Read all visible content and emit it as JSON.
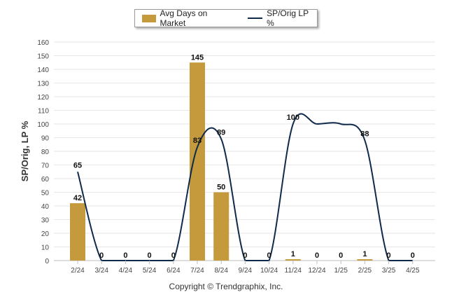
{
  "legend": {
    "bar_label": "Avg Days on Market",
    "line_label": "SP/Orig LP %"
  },
  "footer": {
    "copyright": "Copyright © Trendgraphix, Inc."
  },
  "colors": {
    "bar": "#c49a3c",
    "line": "#102a4c",
    "grid": "#e6e6e6",
    "axis_text": "#444444"
  },
  "chart_data": {
    "type": "bar",
    "ylabel": "SP/Orig, LP %",
    "ylim": [
      0,
      160
    ],
    "yticks": [
      0,
      10,
      20,
      30,
      40,
      50,
      60,
      70,
      80,
      90,
      100,
      110,
      120,
      130,
      140,
      150,
      160
    ],
    "categories": [
      "2/24",
      "3/24",
      "4/24",
      "5/24",
      "6/24",
      "7/24",
      "8/24",
      "9/24",
      "10/24",
      "11/24",
      "12/24",
      "1/25",
      "2/25",
      "3/25",
      "4/25"
    ],
    "series": [
      {
        "name": "Avg Days on Market",
        "type": "bar",
        "values": [
          42,
          0,
          0,
          0,
          0,
          145,
          50,
          0,
          0,
          1,
          0,
          0,
          1,
          0,
          0
        ]
      },
      {
        "name": "SP/Orig LP %",
        "type": "line",
        "values": [
          65,
          0,
          0,
          0,
          0,
          83,
          89,
          0,
          0,
          100,
          100,
          100,
          88,
          0,
          0
        ]
      }
    ],
    "line_labels": [
      "65",
      "",
      "",
      "",
      "",
      "83",
      "89",
      "",
      "",
      "100",
      "",
      "",
      "88",
      "",
      ""
    ],
    "bar_labels": [
      "42",
      "0",
      "0",
      "0",
      "0",
      "145",
      "50",
      "0",
      "0",
      "1",
      "0",
      "0",
      "1",
      "0",
      "0"
    ],
    "grid": true,
    "legend_position": "top"
  }
}
